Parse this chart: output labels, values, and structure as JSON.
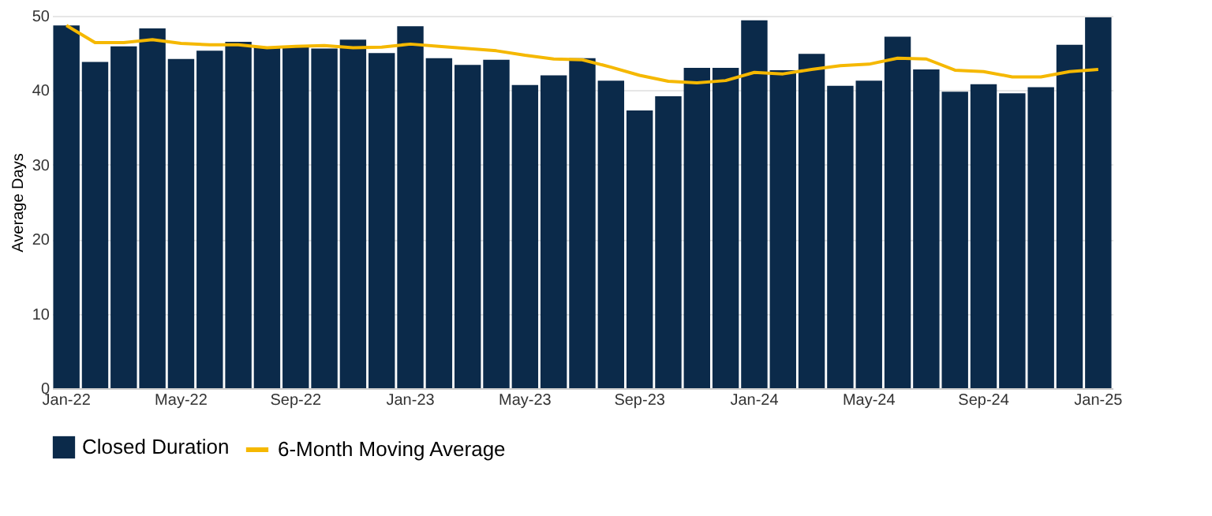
{
  "chart_data": {
    "type": "bar",
    "ylabel": "Average Days",
    "ylim": [
      0,
      50
    ],
    "yticks": [
      0,
      10,
      20,
      30,
      40,
      50
    ],
    "grid": "y",
    "legend": "bottom",
    "categories": [
      "Jan-22",
      null,
      null,
      null,
      "May-22",
      null,
      null,
      null,
      "Sep-22",
      null,
      null,
      null,
      "Jan-23",
      null,
      null,
      null,
      "May-23",
      null,
      null,
      null,
      "Sep-23",
      null,
      null,
      null,
      "Jan-24",
      null,
      null,
      null,
      "May-24",
      null,
      null,
      null,
      "Sep-24",
      null,
      null,
      null,
      "Jan-25"
    ],
    "series": [
      {
        "name": "Closed Duration",
        "color": "#0b2a4a",
        "values": [
          48.7,
          43.8,
          45.9,
          48.3,
          44.2,
          45.3,
          46.5,
          45.8,
          45.8,
          45.6,
          46.8,
          45.0,
          48.6,
          44.3,
          43.4,
          44.1,
          40.7,
          42.0,
          44.3,
          41.3,
          37.3,
          39.2,
          43.0,
          43.0,
          49.4,
          42.7,
          44.9,
          40.6,
          41.3,
          47.2,
          42.8,
          39.8,
          40.8,
          39.6,
          40.4,
          46.1,
          49.8
        ]
      },
      {
        "name": "6-Month Moving Average",
        "type": "line",
        "color": "#f5b800",
        "values": [
          48.7,
          46.4,
          46.4,
          46.8,
          46.3,
          46.1,
          46.1,
          45.7,
          45.9,
          46.0,
          45.7,
          45.8,
          46.2,
          45.9,
          45.6,
          45.3,
          44.7,
          44.2,
          44.1,
          43.1,
          42.0,
          41.2,
          41.0,
          41.3,
          42.4,
          42.2,
          42.8,
          43.3,
          43.5,
          44.3,
          44.2,
          42.7,
          42.5,
          41.8,
          41.8,
          42.5,
          42.8
        ]
      }
    ]
  }
}
